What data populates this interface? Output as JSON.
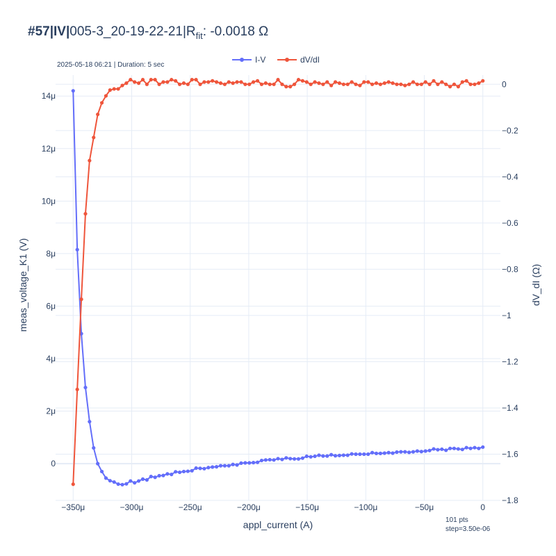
{
  "header": {
    "title_bold": "#57|IV|",
    "title_rest": "005-3_20-19-22-21|R",
    "title_sub": "fit",
    "title_value": ": -0.0018 Ω",
    "subtitle": "2025-05-18 06:21 | Duration: 5 sec"
  },
  "footer": {
    "points": "101 pts",
    "step": "step=3.50e-06"
  },
  "colors": {
    "iv": "#636efa",
    "dvdi": "#ef553b",
    "grid": "#e5ecf6",
    "text": "#2a3f5f"
  },
  "chart_data": {
    "type": "line",
    "xlabel": "appl_current (A)",
    "ylabel": "meas_voltage_K1 (V)",
    "y2label": "dV_dI (Ω)",
    "xlim": [
      -0.000365,
      1.5e-05
    ],
    "ylim": [
      -1.4e-06,
      1.48e-05
    ],
    "y2lim": [
      -1.8,
      0.04
    ],
    "x_ticks": [
      -0.00035,
      -0.0003,
      -0.00025,
      -0.0002,
      -0.00015,
      -0.0001,
      -5e-05,
      0
    ],
    "x_tick_labels": [
      "−350μ",
      "−300μ",
      "−250μ",
      "−200μ",
      "−150μ",
      "−100μ",
      "−50μ",
      "0"
    ],
    "y_ticks": [
      0,
      2e-06,
      4e-06,
      6e-06,
      8e-06,
      1e-05,
      1.2e-05,
      1.4e-05
    ],
    "y_tick_labels": [
      "0",
      "2μ",
      "4μ",
      "6μ",
      "8μ",
      "10μ",
      "12μ",
      "14μ"
    ],
    "y2_ticks": [
      0,
      -0.2,
      -0.4,
      -0.6,
      -0.8,
      -1,
      -1.2,
      -1.4,
      -1.6,
      -1.8
    ],
    "y2_tick_labels": [
      "0",
      "−0.2",
      "−0.4",
      "−0.6",
      "−0.8",
      "−1",
      "−1.2",
      "−1.4",
      "−1.6",
      "−1.8"
    ],
    "legend_position": "top-center",
    "grid": true,
    "x": [
      -0.00035,
      -0.0003465,
      -0.000343,
      -0.0003395,
      -0.000336,
      -0.0003325,
      -0.000329,
      -0.0003255,
      -0.000322,
      -0.0003185,
      -0.000315,
      -0.0003115,
      -0.000308,
      -0.0003045,
      -0.000301,
      -0.0002975,
      -0.000294,
      -0.0002905,
      -0.000287,
      -0.0002835,
      -0.00028,
      -0.0002765,
      -0.000273,
      -0.0002695,
      -0.000266,
      -0.0002625,
      -0.000259,
      -0.0002555,
      -0.000252,
      -0.0002485,
      -0.000245,
      -0.0002415,
      -0.000238,
      -0.0002345,
      -0.000231,
      -0.0002275,
      -0.000224,
      -0.0002205,
      -0.000217,
      -0.0002135,
      -0.00021,
      -0.0002065,
      -0.000203,
      -0.0001995,
      -0.000196,
      -0.0001925,
      -0.000189,
      -0.0001855,
      -0.000182,
      -0.0001785,
      -0.000175,
      -0.0001715,
      -0.000168,
      -0.0001645,
      -0.000161,
      -0.0001575,
      -0.000154,
      -0.0001505,
      -0.000147,
      -0.0001435,
      -0.00014,
      -0.0001365,
      -0.000133,
      -0.0001295,
      -0.000126,
      -0.0001225,
      -0.000119,
      -0.0001155,
      -0.000112,
      -0.0001085,
      -0.000105,
      -0.0001015,
      -9.8e-05,
      -9.45e-05,
      -9.1e-05,
      -8.75e-05,
      -8.4e-05,
      -8.05e-05,
      -7.7e-05,
      -7.35e-05,
      -7e-05,
      -6.65e-05,
      -6.3e-05,
      -5.95e-05,
      -5.6e-05,
      -5.25e-05,
      -4.9e-05,
      -4.55e-05,
      -4.2e-05,
      -3.85e-05,
      -3.5e-05,
      -3.15e-05,
      -2.8e-05,
      -2.45e-05,
      -2.1e-05,
      -1.75e-05,
      -1.4e-05,
      -1.05e-05,
      -7e-06,
      -3.5e-06,
      0
    ],
    "series": [
      {
        "name": "I-V",
        "axis": "y",
        "values": [
          1.42e-05,
          8.15e-06,
          4.95e-06,
          2.9e-06,
          1.6e-06,
          6e-07,
          0,
          -3e-07,
          -5.5e-07,
          -6.5e-07,
          -7e-07,
          -7.8e-07,
          -8e-07,
          -7.7e-07,
          -6.6e-07,
          -7.3e-07,
          -6.6e-07,
          -5.9e-07,
          -6.2e-07,
          -4.9e-07,
          -5.2e-07,
          -4.6e-07,
          -4.5e-07,
          -3.9e-07,
          -4.1e-07,
          -3.1e-07,
          -3.3e-07,
          -3e-07,
          -2.9e-07,
          -2.7e-07,
          -1.7e-07,
          -1.8e-07,
          -1.9e-07,
          -1.5e-07,
          -1.3e-07,
          -1.2e-07,
          -8e-08,
          -8e-08,
          -8e-08,
          -3e-08,
          -5e-08,
          2e-08,
          3e-08,
          3e-08,
          4e-08,
          5e-08,
          1.2e-07,
          1.4e-07,
          1.5e-07,
          1.4e-07,
          1.9e-07,
          1.6e-07,
          2.2e-07,
          1.9e-07,
          1.8e-07,
          1.8e-07,
          2.1e-07,
          2.8e-07,
          2.6e-07,
          2.8e-07,
          3.2e-07,
          2.9e-07,
          2.9e-07,
          3.4e-07,
          3e-07,
          3.1e-07,
          3.2e-07,
          3.2e-07,
          3.7e-07,
          3.6e-07,
          3.6e-07,
          3.6e-07,
          3.6e-07,
          4.2e-07,
          3.9e-07,
          3.9e-07,
          4e-07,
          4.2e-07,
          4e-07,
          4.4e-07,
          4.5e-07,
          4.5e-07,
          4.3e-07,
          4.5e-07,
          4.8e-07,
          4.6e-07,
          4.8e-07,
          5e-07,
          5.6e-07,
          5.3e-07,
          5.5e-07,
          5.1e-07,
          5.8e-07,
          5.8e-07,
          5.6e-07,
          5.4e-07,
          6.1e-07,
          5.8e-07,
          6.1e-07,
          5.8e-07,
          6.3e-07
        ]
      },
      {
        "name": "dV/dI",
        "axis": "y2",
        "values": [
          -1.73,
          -1.32,
          -0.93,
          -0.56,
          -0.33,
          -0.23,
          -0.13,
          -0.08,
          -0.05,
          -0.025,
          -0.02,
          -0.02,
          -0.005,
          0.005,
          0.02,
          0.01,
          0.005,
          0.02,
          0.0,
          0.02,
          0.02,
          0.0,
          0.01,
          0.01,
          0.02,
          0.015,
          0.0,
          0.005,
          0.0,
          0.02,
          0.02,
          0.0,
          0.01,
          0.01,
          0.015,
          0.01,
          0.005,
          0.0,
          0.01,
          0.005,
          0.01,
          0.01,
          0.0,
          0.0,
          0.01,
          0.015,
          0.0,
          0.005,
          0.0,
          0.0,
          0.02,
          0.0,
          -0.01,
          -0.01,
          0.0,
          0.02,
          0.015,
          0.01,
          0.0,
          0.01,
          0.005,
          0.0,
          0.01,
          -0.005,
          0.01,
          0.005,
          0.0,
          0.0,
          0.01,
          0.0,
          -0.005,
          0.01,
          0.01,
          0.0,
          0.005,
          0.0,
          0.005,
          0.01,
          0.005,
          0.0,
          0.0,
          -0.005,
          0.0,
          0.01,
          0.0,
          0.0,
          0.01,
          0.0,
          0.015,
          0.0,
          0.01,
          0.0,
          -0.01,
          0.0,
          -0.01,
          0.01,
          0.015,
          0.0,
          0.0,
          0.005,
          0.015
        ]
      }
    ]
  }
}
